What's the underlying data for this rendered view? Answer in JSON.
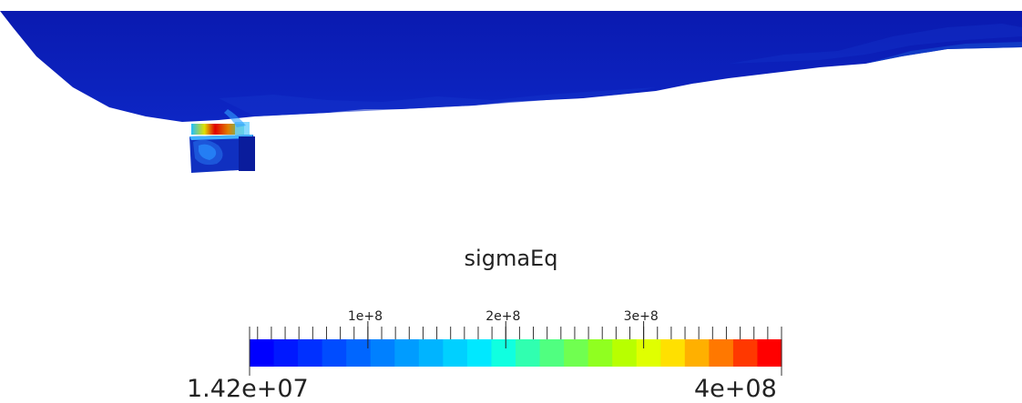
{
  "legend": {
    "title": "sigmaEq",
    "min_label": "1.42e+07",
    "max_label": "4e+08",
    "range": [
      14200000,
      400000000
    ],
    "major_ticks": [
      {
        "value": 100000000,
        "label": "1e+8"
      },
      {
        "value": 200000000,
        "label": "2e+8"
      },
      {
        "value": 300000000,
        "label": "3e+8"
      }
    ],
    "minor_tick_step": 10000000,
    "colormap": "jet",
    "color_segments": 21,
    "colors": [
      "#0000ff",
      "#0018ff",
      "#0030ff",
      "#004cff",
      "#0066ff",
      "#0080ff",
      "#009cff",
      "#00b4ff",
      "#00d0ff",
      "#00e8ff",
      "#10ffe0",
      "#30ffb0",
      "#50ff80",
      "#70ff50",
      "#90ff20",
      "#b8ff00",
      "#e0ff00",
      "#ffe000",
      "#ffb000",
      "#ff7800",
      "#ff3800",
      "#ff0000"
    ]
  },
  "model": {
    "fill_color": "#0a1fb5",
    "hotspot_colors": [
      "#d40000",
      "#e8a000",
      "#20d080",
      "#30b0ff"
    ]
  }
}
